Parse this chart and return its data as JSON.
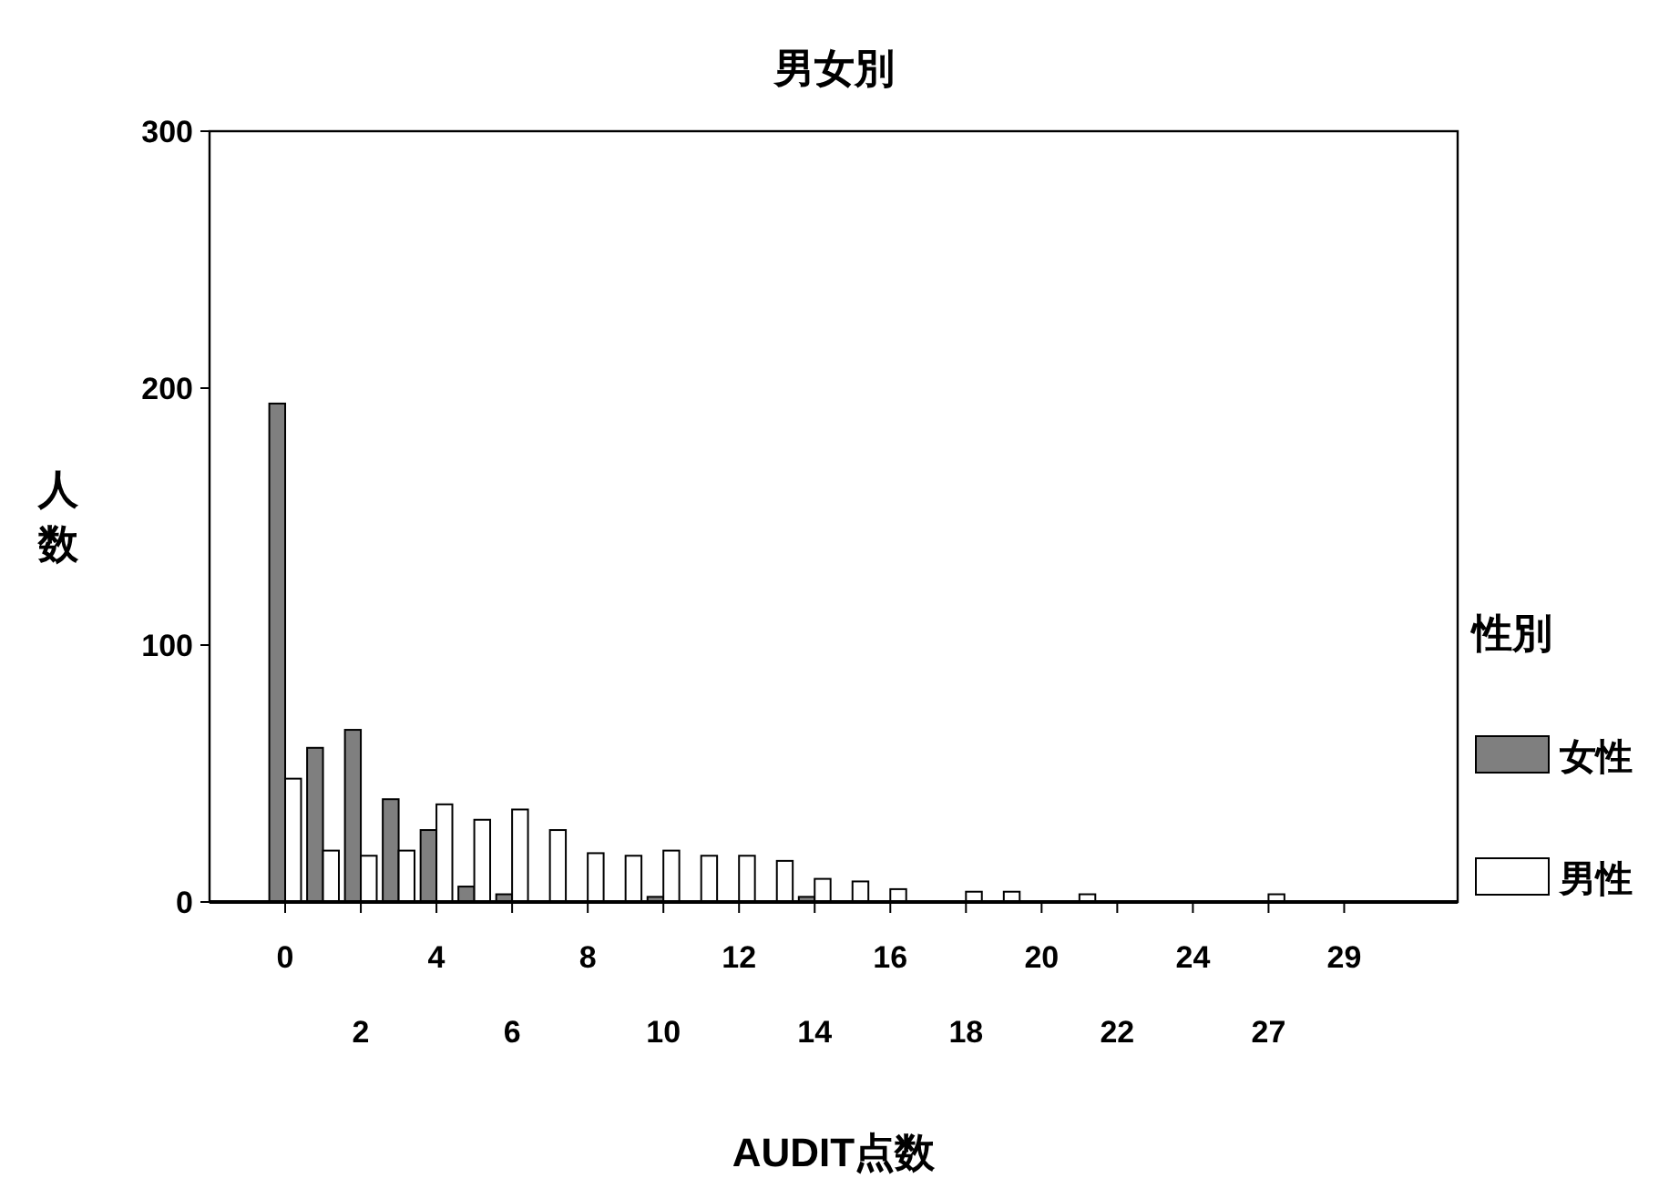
{
  "chart_data": {
    "type": "bar",
    "title": "男女別",
    "xlabel": "AUDIT点数",
    "ylabel": "人数",
    "legend_title": "性別",
    "categories": [
      "0",
      null,
      "2",
      null,
      "4",
      null,
      "6",
      null,
      "8",
      null,
      "10",
      null,
      "12",
      null,
      "14",
      null,
      "16",
      null,
      "18",
      null,
      "20",
      null,
      "22",
      null,
      "24",
      null,
      "27",
      null,
      "29"
    ],
    "series": [
      {
        "name": "女性",
        "color": "#7f7f7f",
        "values": [
          194,
          60,
          67,
          40,
          28,
          6,
          3,
          null,
          0,
          0,
          2,
          0,
          0,
          0,
          2,
          0,
          0,
          0,
          0,
          0,
          0,
          0,
          0,
          0,
          0,
          0,
          0,
          0,
          0
        ]
      },
      {
        "name": "男性",
        "color": "#ffffff",
        "values": [
          48,
          20,
          18,
          20,
          38,
          32,
          36,
          28,
          19,
          18,
          20,
          18,
          18,
          16,
          9,
          8,
          5,
          0,
          4,
          4,
          0,
          3,
          null,
          0,
          0,
          0,
          3,
          0,
          0
        ]
      }
    ],
    "ylim": [
      0,
      300
    ],
    "yticks": [
      0,
      100,
      200,
      300
    ],
    "grid": false,
    "legend": "right"
  }
}
